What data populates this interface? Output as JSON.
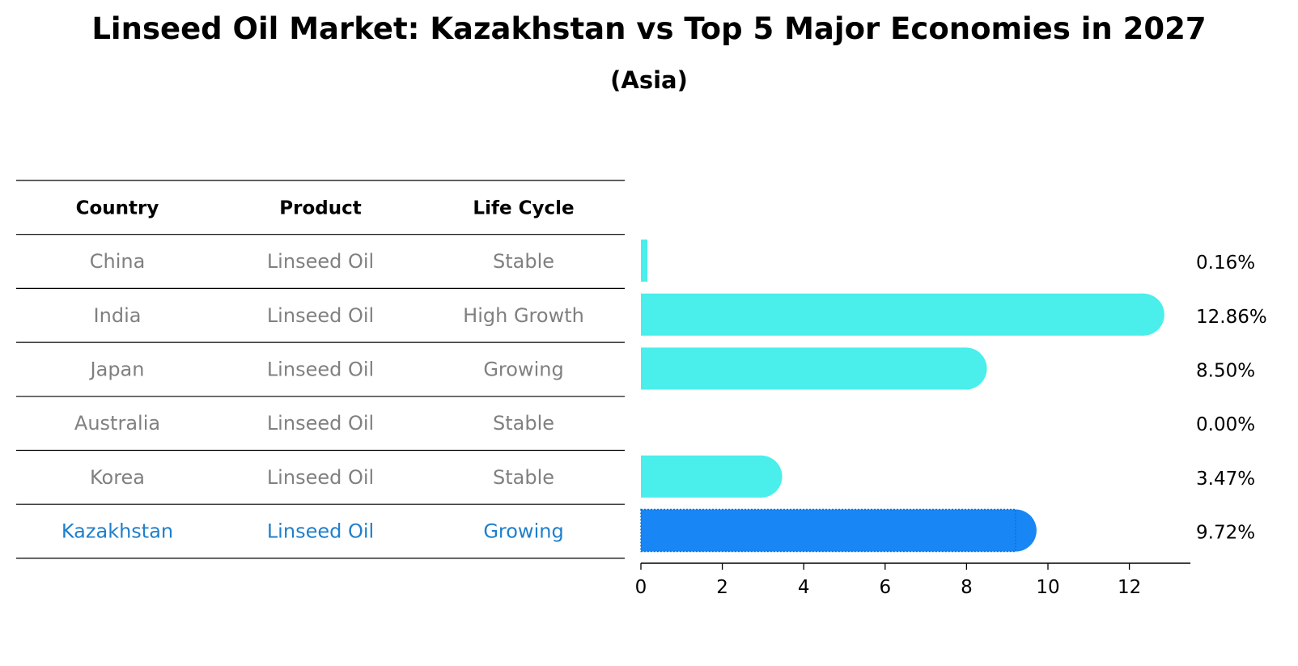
{
  "title": "Linseed Oil Market: Kazakhstan vs Top 5 Major Economies in 2027",
  "subtitle": "(Asia)",
  "table": {
    "headers": [
      "Country",
      "Product",
      "Life Cycle"
    ],
    "rows": [
      {
        "country": "China",
        "product": "Linseed Oil",
        "life_cycle": "Stable"
      },
      {
        "country": "India",
        "product": "Linseed Oil",
        "life_cycle": "High Growth"
      },
      {
        "country": "Japan",
        "product": "Linseed Oil",
        "life_cycle": "Growing"
      },
      {
        "country": "Australia",
        "product": "Linseed Oil",
        "life_cycle": "Stable"
      },
      {
        "country": "Korea",
        "product": "Linseed Oil",
        "life_cycle": "Stable"
      },
      {
        "country": "Kazakhstan",
        "product": "Linseed Oil",
        "life_cycle": "Growing"
      }
    ],
    "highlight_row": "Kazakhstan"
  },
  "chart_data": {
    "type": "bar",
    "orientation": "horizontal",
    "categories": [
      "China",
      "India",
      "Japan",
      "Australia",
      "Korea",
      "Kazakhstan"
    ],
    "values": [
      0.16,
      12.86,
      8.5,
      0.0,
      3.47,
      9.72
    ],
    "value_labels": [
      "0.16%",
      "12.86%",
      "8.50%",
      "0.00%",
      "3.47%",
      "9.72%"
    ],
    "xlim": [
      0,
      13.5
    ],
    "xticks": [
      0,
      2,
      4,
      6,
      8,
      10,
      12
    ],
    "grid": false,
    "colors": {
      "default": "#4aeeea",
      "highlight": "#1886f5"
    }
  }
}
